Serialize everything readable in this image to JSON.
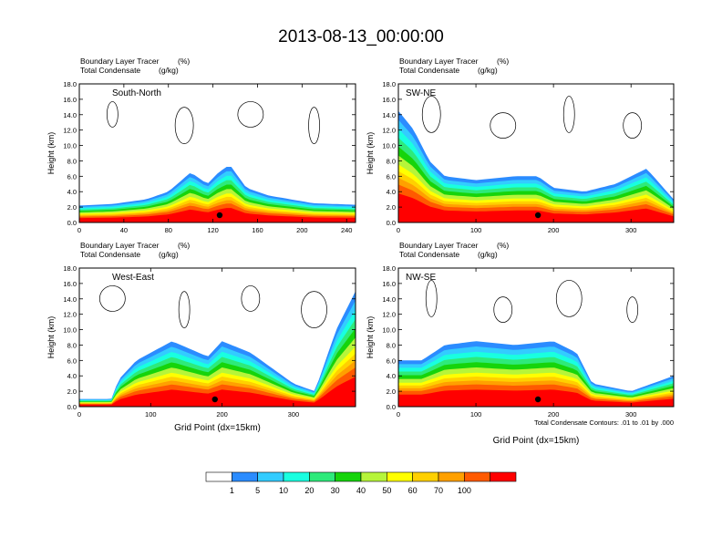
{
  "title": "2013-08-13_00:00:00",
  "chart_data": [
    {
      "type": "area",
      "panel_label": "South-North",
      "left_label_1": "Boundary Layer Tracer",
      "left_label_2": "Total Condensate",
      "unit_label_1": "(%)",
      "unit_label_2": "(g/kg)",
      "ylabel": "Height (km)",
      "ylim": [
        0,
        18
      ],
      "yticks": [
        "0.0",
        "2.0",
        "4.0",
        "6.0",
        "8.0",
        "10.0",
        "12.0",
        "14.0",
        "16.0",
        "18.0"
      ],
      "xlim": [
        0,
        248
      ],
      "xticks": [
        0,
        40,
        80,
        120,
        160,
        200,
        240
      ],
      "marker_x": 126,
      "tracer_top_km": [
        {
          "x": 0,
          "v": 2.2
        },
        {
          "x": 30,
          "v": 2.4
        },
        {
          "x": 60,
          "v": 3.0
        },
        {
          "x": 80,
          "v": 4.0
        },
        {
          "x": 100,
          "v": 6.5
        },
        {
          "x": 115,
          "v": 5.0
        },
        {
          "x": 125,
          "v": 6.5
        },
        {
          "x": 135,
          "v": 7.5
        },
        {
          "x": 150,
          "v": 4.5
        },
        {
          "x": 170,
          "v": 3.5
        },
        {
          "x": 190,
          "v": 3.0
        },
        {
          "x": 210,
          "v": 2.5
        },
        {
          "x": 248,
          "v": 2.3
        }
      ]
    },
    {
      "type": "area",
      "panel_label": "SW-NE",
      "left_label_1": "Boundary Layer Tracer",
      "left_label_2": "Total Condensate",
      "unit_label_1": "(%)",
      "unit_label_2": "(g/kg)",
      "ylabel": "Height (km)",
      "ylim": [
        0,
        18
      ],
      "yticks": [
        "0.0",
        "2.0",
        "4.0",
        "6.0",
        "8.0",
        "10.0",
        "12.0",
        "14.0",
        "16.0",
        "18.0"
      ],
      "xlim": [
        0,
        355
      ],
      "xticks": [
        0,
        100,
        200,
        300
      ],
      "marker_x": 180,
      "tracer_top_km": [
        {
          "x": 0,
          "v": 14.5
        },
        {
          "x": 20,
          "v": 12.0
        },
        {
          "x": 40,
          "v": 8.0
        },
        {
          "x": 60,
          "v": 6.0
        },
        {
          "x": 100,
          "v": 5.5
        },
        {
          "x": 150,
          "v": 6.0
        },
        {
          "x": 180,
          "v": 6.0
        },
        {
          "x": 200,
          "v": 4.5
        },
        {
          "x": 240,
          "v": 4.0
        },
        {
          "x": 280,
          "v": 5.0
        },
        {
          "x": 320,
          "v": 7.0
        },
        {
          "x": 355,
          "v": 3.0
        }
      ]
    },
    {
      "type": "area",
      "panel_label": "West-East",
      "left_label_1": "Boundary Layer Tracer",
      "left_label_2": "Total Condensate",
      "unit_label_1": "(%)",
      "unit_label_2": "(g/kg)",
      "ylabel": "Height (km)",
      "xlabel": "Grid Point (dx=15km)",
      "ylim": [
        0,
        18
      ],
      "yticks": [
        "0.0",
        "2.0",
        "4.0",
        "6.0",
        "8.0",
        "10.0",
        "12.0",
        "14.0",
        "16.0",
        "18.0"
      ],
      "xlim": [
        0,
        387
      ],
      "xticks": [
        0,
        100,
        200,
        300
      ],
      "marker_x": 190,
      "tracer_top_km": [
        {
          "x": 0,
          "v": 1.0
        },
        {
          "x": 45,
          "v": 1.0
        },
        {
          "x": 55,
          "v": 3.5
        },
        {
          "x": 80,
          "v": 6.0
        },
        {
          "x": 130,
          "v": 8.5
        },
        {
          "x": 180,
          "v": 6.5
        },
        {
          "x": 200,
          "v": 8.5
        },
        {
          "x": 240,
          "v": 7.0
        },
        {
          "x": 270,
          "v": 5.0
        },
        {
          "x": 300,
          "v": 3.0
        },
        {
          "x": 330,
          "v": 2.0
        },
        {
          "x": 360,
          "v": 10.0
        },
        {
          "x": 387,
          "v": 15.0
        }
      ]
    },
    {
      "type": "area",
      "panel_label": "NW-SE",
      "left_label_1": "Boundary Layer Tracer",
      "left_label_2": "Total Condensate",
      "unit_label_1": "(%)",
      "unit_label_2": "(g/kg)",
      "ylabel": "Height (km)",
      "xlabel": "Grid Point (dx=15km)",
      "ylim": [
        0,
        18
      ],
      "yticks": [
        "0.0",
        "2.0",
        "4.0",
        "6.0",
        "8.0",
        "10.0",
        "12.0",
        "14.0",
        "16.0",
        "18.0"
      ],
      "xlim": [
        0,
        355
      ],
      "xticks": [
        0,
        100,
        200,
        300
      ],
      "marker_x": 180,
      "contour_note": "Total Condensate Contours: .01 to .01 by .000",
      "tracer_top_km": [
        {
          "x": 0,
          "v": 6.0
        },
        {
          "x": 30,
          "v": 6.0
        },
        {
          "x": 60,
          "v": 8.0
        },
        {
          "x": 100,
          "v": 8.5
        },
        {
          "x": 150,
          "v": 8.0
        },
        {
          "x": 200,
          "v": 8.5
        },
        {
          "x": 230,
          "v": 7.0
        },
        {
          "x": 250,
          "v": 3.0
        },
        {
          "x": 300,
          "v": 2.0
        },
        {
          "x": 355,
          "v": 4.0
        }
      ]
    }
  ],
  "colorbar": {
    "labels": [
      "1",
      "5",
      "10",
      "20",
      "30",
      "40",
      "50",
      "60",
      "70",
      "100"
    ],
    "colors": [
      "#ffffff",
      "#2b8cff",
      "#33ccff",
      "#19ffe0",
      "#2eea7a",
      "#16d40b",
      "#b6f53a",
      "#ffff00",
      "#ffd000",
      "#ffa000",
      "#ff5a00",
      "#ff0000"
    ]
  }
}
